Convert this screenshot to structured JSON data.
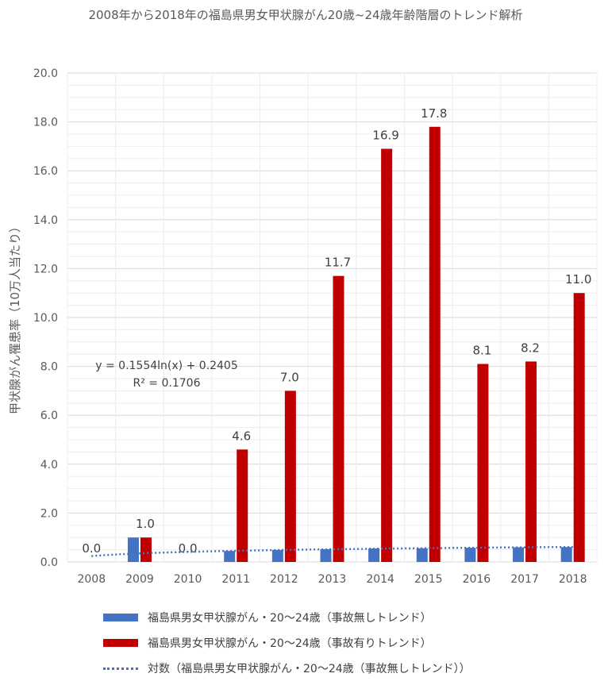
{
  "chart_data": {
    "type": "bar",
    "title": "2008年から2018年の福島県男女甲状腺がん20歳~24歳年齢階層のトレンド解析",
    "ylabel": "甲状腺がん罹患率（10万人当たり）",
    "xlabel": "",
    "ylim": [
      0,
      20
    ],
    "yticks": [
      "0.0",
      "2.0",
      "4.0",
      "6.0",
      "8.0",
      "10.0",
      "12.0",
      "14.0",
      "16.0",
      "18.0",
      "20.0"
    ],
    "categories": [
      "2008",
      "2009",
      "2010",
      "2011",
      "2012",
      "2013",
      "2014",
      "2015",
      "2016",
      "2017",
      "2018"
    ],
    "series": [
      {
        "name": "福島県男女甲状腺がん・20～24歳（事故無しトレンド）",
        "color": "#4472C4",
        "values": [
          0.0,
          1.0,
          0.0,
          0.45,
          0.49,
          0.52,
          0.55,
          0.56,
          0.58,
          0.6,
          0.61
        ]
      },
      {
        "name": "福島県男女甲状腺がん・20～24歳（事故有りトレンド）",
        "color": "#C00000",
        "values": [
          0.0,
          1.0,
          0.0,
          4.6,
          7.0,
          11.7,
          16.9,
          17.8,
          8.1,
          8.2,
          11.0
        ],
        "labels": [
          "0.0",
          "1.0",
          "0.0",
          "4.6",
          "7.0",
          "11.7",
          "16.9",
          "17.8",
          "8.1",
          "8.2",
          "11.0"
        ]
      }
    ],
    "trendline": {
      "name": "対数（福島県男女甲状腺がん・20～24歳（事故無しトレンド））",
      "color": "#4472C4",
      "coef_a": 0.1554,
      "coef_b": 0.2405,
      "equation": "y = 0.1554ln(x) + 0.2405",
      "r2": "R² = 0.1706"
    },
    "grid": true,
    "legend_position": "bottom"
  }
}
